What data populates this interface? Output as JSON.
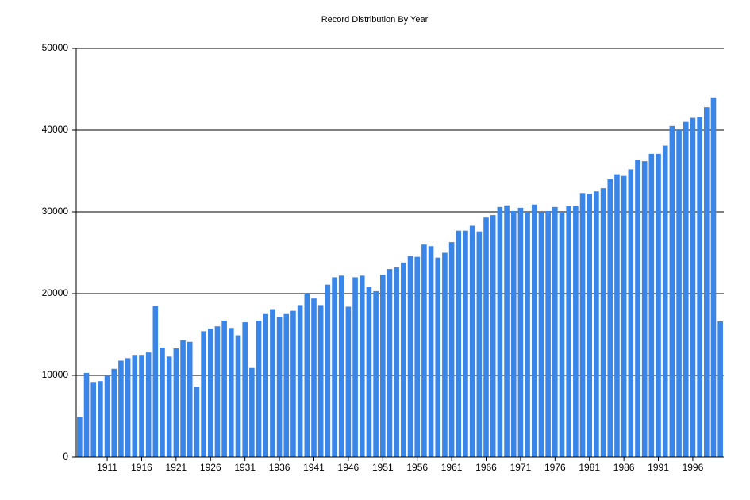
{
  "chart_data": {
    "type": "bar",
    "title": "Record Distribution By Year",
    "categories": [
      null,
      null,
      null,
      null,
      "1911",
      null,
      null,
      null,
      null,
      "1916",
      null,
      null,
      null,
      null,
      "1921",
      null,
      null,
      null,
      null,
      "1926",
      null,
      null,
      null,
      null,
      "1931",
      null,
      null,
      null,
      null,
      "1936",
      null,
      null,
      null,
      null,
      "1941",
      null,
      null,
      null,
      null,
      "1946",
      null,
      null,
      null,
      null,
      "1951",
      null,
      null,
      null,
      null,
      "1956",
      null,
      null,
      null,
      null,
      "1961",
      null,
      null,
      null,
      null,
      "1966",
      null,
      null,
      null,
      null,
      "1971",
      null,
      null,
      null,
      null,
      "1976",
      null,
      null,
      null,
      null,
      "1981",
      null,
      null,
      null,
      null,
      "1986",
      null,
      null,
      null,
      null,
      "1991",
      null,
      null,
      null,
      null,
      "1996",
      null,
      null,
      null,
      null
    ],
    "values": [
      4900,
      10300,
      9200,
      9300,
      10000,
      10800,
      11800,
      12100,
      12500,
      12500,
      12800,
      18500,
      13400,
      12300,
      13300,
      14300,
      14100,
      8600,
      15400,
      15700,
      16000,
      16700,
      15800,
      14900,
      16500,
      10900,
      16700,
      17500,
      18100,
      17100,
      17500,
      17900,
      18600,
      20000,
      19400,
      18600,
      21100,
      22000,
      22200,
      18400,
      22000,
      22200,
      20800,
      20300,
      22300,
      23000,
      23200,
      23800,
      24600,
      24500,
      26000,
      25800,
      24400,
      25000,
      26300,
      27700,
      27700,
      28300,
      27600,
      29300,
      29600,
      30600,
      30800,
      30100,
      30500,
      30000,
      30900,
      30000,
      30100,
      30600,
      30000,
      30700,
      30700,
      32300,
      32200,
      32500,
      32900,
      34000,
      34600,
      34400,
      35200,
      36400,
      36200,
      37100,
      37100,
      38100,
      40500,
      40000,
      41000,
      41500,
      41600,
      42800,
      44000,
      16600
    ],
    "color": "#3a86e8",
    "ylim": [
      0,
      50000
    ],
    "yticks": [
      0,
      10000,
      20000,
      30000,
      40000,
      50000
    ],
    "grid": true
  }
}
